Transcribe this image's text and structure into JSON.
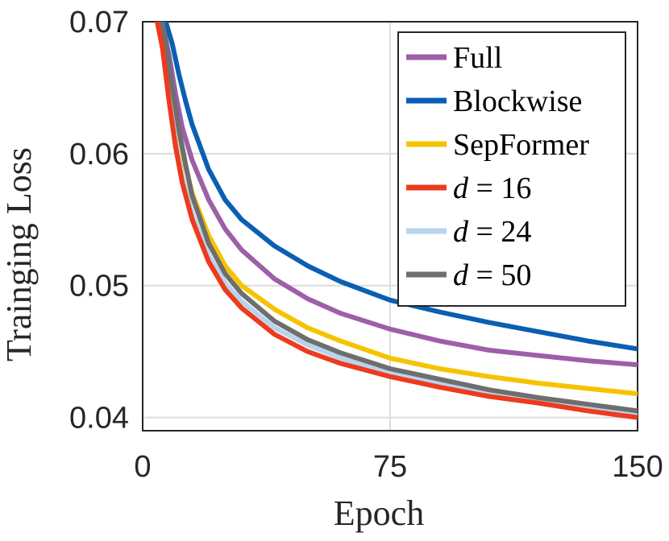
{
  "chart_data": {
    "type": "line",
    "title": "",
    "xlabel": "Epoch",
    "ylabel": "Trainging Loss",
    "xlim": [
      0,
      150
    ],
    "ylim": [
      0.039,
      0.07
    ],
    "xticks": [
      0,
      75,
      150
    ],
    "xtick_labels": [
      "0",
      "75",
      "150"
    ],
    "yticks": [
      0.04,
      0.05,
      0.06,
      0.07
    ],
    "ytick_labels": [
      "0.04",
      "0.05",
      "0.06",
      "0.07"
    ],
    "grid": true,
    "legend_position": "top-right",
    "series": [
      {
        "name": "Full",
        "legend_var": "",
        "legend_value": "",
        "color": "#9C5FA8",
        "x": [
          4,
          6,
          8,
          10,
          12,
          15,
          20,
          25,
          30,
          40,
          50,
          60,
          75,
          90,
          105,
          120,
          135,
          150
        ],
        "y": [
          0.0705,
          0.0698,
          0.0675,
          0.0645,
          0.062,
          0.0595,
          0.0565,
          0.0543,
          0.0527,
          0.0505,
          0.049,
          0.0479,
          0.0467,
          0.0458,
          0.0451,
          0.0447,
          0.0443,
          0.044
        ]
      },
      {
        "name": "Blockwise",
        "legend_var": "",
        "legend_value": "",
        "color": "#0A5FB4",
        "x": [
          5,
          7,
          9,
          11,
          13,
          15,
          20,
          25,
          30,
          40,
          50,
          60,
          75,
          90,
          105,
          120,
          135,
          150
        ],
        "y": [
          0.0712,
          0.07,
          0.0683,
          0.066,
          0.064,
          0.0622,
          0.0588,
          0.0565,
          0.055,
          0.053,
          0.0515,
          0.0503,
          0.0489,
          0.048,
          0.0472,
          0.0465,
          0.0458,
          0.0452
        ]
      },
      {
        "name": "SepFormer",
        "legend_var": "",
        "legend_value": "",
        "color": "#F5C400",
        "x": [
          4,
          6,
          8,
          10,
          12,
          15,
          20,
          25,
          30,
          40,
          50,
          60,
          75,
          90,
          105,
          120,
          135,
          150
        ],
        "y": [
          0.0705,
          0.0688,
          0.066,
          0.0627,
          0.06,
          0.057,
          0.0538,
          0.0515,
          0.05,
          0.0482,
          0.0468,
          0.0458,
          0.0445,
          0.0437,
          0.0431,
          0.0426,
          0.0422,
          0.0418
        ]
      },
      {
        "name": "d = 16",
        "legend_var": "d",
        "legend_value": "= 16",
        "color": "#EE3A1E",
        "x": [
          4,
          6,
          8,
          10,
          12,
          15,
          20,
          25,
          30,
          40,
          50,
          60,
          75,
          90,
          105,
          120,
          135,
          150
        ],
        "y": [
          0.0705,
          0.068,
          0.064,
          0.0605,
          0.0578,
          0.055,
          0.0518,
          0.0497,
          0.0483,
          0.0463,
          0.045,
          0.0441,
          0.0431,
          0.0423,
          0.0416,
          0.0411,
          0.0405,
          0.04
        ]
      },
      {
        "name": "d = 24",
        "legend_var": "d",
        "legend_value": "= 24",
        "color": "#B9D3EC",
        "x": [
          4,
          6,
          8,
          10,
          12,
          15,
          20,
          25,
          30,
          40,
          50,
          60,
          75,
          90,
          105,
          120,
          135,
          150
        ],
        "y": [
          0.0705,
          0.0682,
          0.0645,
          0.061,
          0.0583,
          0.0555,
          0.0523,
          0.0502,
          0.0488,
          0.0468,
          0.0455,
          0.0445,
          0.0434,
          0.0426,
          0.0419,
          0.0413,
          0.0408,
          0.0403
        ]
      },
      {
        "name": "d = 50",
        "legend_var": "d",
        "legend_value": "= 50",
        "color": "#6E6E6E",
        "x": [
          5,
          7,
          9,
          11,
          13,
          15,
          20,
          25,
          30,
          40,
          50,
          60,
          75,
          90,
          105,
          120,
          135,
          150
        ],
        "y": [
          0.0712,
          0.0685,
          0.065,
          0.0618,
          0.0592,
          0.0568,
          0.0532,
          0.0509,
          0.0494,
          0.0473,
          0.0459,
          0.0449,
          0.0437,
          0.0429,
          0.0421,
          0.0415,
          0.041,
          0.0405
        ]
      }
    ]
  }
}
